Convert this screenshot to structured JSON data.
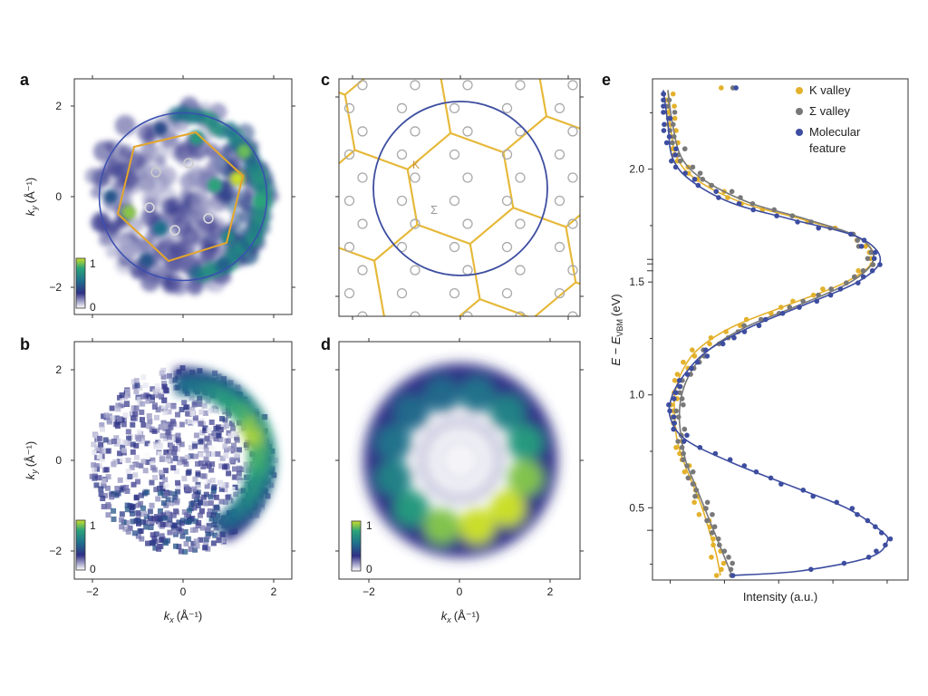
{
  "panels": {
    "a": {
      "letter": "a",
      "ylabel_main": "k",
      "ylabel_sub": "y",
      "ylabel_unit": "(Å⁻¹)",
      "xlabel_main": "",
      "xlabel_sub": "",
      "xlabel_unit": "",
      "xticks": [],
      "yticks": [
        "2",
        "0",
        "−2"
      ],
      "colorbar": {
        "max": "1",
        "min": "0"
      }
    },
    "b": {
      "letter": "b",
      "ylabel_main": "k",
      "ylabel_sub": "y",
      "ylabel_unit": "(Å⁻¹)",
      "xlabel_main": "k",
      "xlabel_sub": "x",
      "xlabel_unit": "(Å⁻¹)",
      "xticks": [
        "−2",
        "0",
        "2"
      ],
      "yticks": [
        "2",
        "0",
        "−2"
      ],
      "colorbar": {
        "max": "1",
        "min": "0"
      }
    },
    "c": {
      "letter": "c",
      "point_labels": {
        "K": "K",
        "sigma": "Σ"
      }
    },
    "d": {
      "letter": "d",
      "xlabel_main": "k",
      "xlabel_sub": "x",
      "xlabel_unit": "(Å⁻¹)",
      "xticks": [
        "−2",
        "0",
        "2"
      ],
      "colorbar": {
        "max": "1",
        "min": "0"
      }
    },
    "e": {
      "letter": "e"
    }
  },
  "chart_data": [
    {
      "panel": "a",
      "type": "heatmap",
      "x_range": [
        -2.2,
        2.2
      ],
      "y_range": [
        -2.2,
        2.2
      ],
      "colormap": [
        "#ffffff",
        "#2f2f86",
        "#1f6f8c",
        "#2aa37a",
        "#c9de2a"
      ],
      "colorbar_range": [
        0,
        1
      ],
      "overlay_circle_radius": 1.85,
      "hot_spots": [
        {
          "x": 1.2,
          "y": 0.4,
          "v": 1.0
        },
        {
          "x": 1.35,
          "y": 1.0,
          "v": 0.85
        },
        {
          "x": 1.7,
          "y": -0.1,
          "v": 0.75
        },
        {
          "x": -1.2,
          "y": -0.35,
          "v": 0.9
        },
        {
          "x": 0.7,
          "y": 0.25,
          "v": 0.75
        },
        {
          "x": 0.3,
          "y": 1.3,
          "v": 0.7
        },
        {
          "x": 1.0,
          "y": -0.9,
          "v": 0.6
        },
        {
          "x": -0.5,
          "y": -0.7,
          "v": 0.5
        },
        {
          "x": -1.6,
          "y": 0.0,
          "v": 0.4
        },
        {
          "x": -0.8,
          "y": -1.4,
          "v": 0.4
        },
        {
          "x": 0.9,
          "y": -1.5,
          "v": 0.45
        },
        {
          "x": -0.5,
          "y": 1.5,
          "v": 0.35
        }
      ]
    },
    {
      "panel": "b",
      "type": "heatmap",
      "x_range": [
        -2.2,
        2.2
      ],
      "y_range": [
        -2.2,
        2.2
      ],
      "colorbar_range": [
        0,
        1
      ],
      "arc": {
        "radius": 1.75,
        "start_deg": -60,
        "end_deg": 95,
        "peak": 1.0
      }
    },
    {
      "panel": "c",
      "type": "diagram",
      "description_points": [
        "K",
        "Σ"
      ]
    },
    {
      "panel": "d",
      "type": "heatmap",
      "x_range": [
        -2.2,
        2.2
      ],
      "y_range": [
        -2.2,
        2.2
      ],
      "colorbar_range": [
        0,
        1
      ],
      "ring_lobes": 12,
      "ring_radius": 1.5,
      "lobe_values": [
        0.35,
        0.45,
        0.6,
        0.85,
        1.0,
        1.0,
        0.85,
        0.6,
        0.45,
        0.35,
        0.3,
        0.3
      ]
    },
    {
      "panel": "e",
      "type": "line",
      "xlabel": "Intensity (a.u.)",
      "ylabel": "E − E",
      "ylabel_sub": "VBM",
      "ylabel_unit": "(eV)",
      "ylim": [
        0.18,
        2.4
      ],
      "yticks": [
        0.5,
        1.0,
        1.5,
        2.0
      ],
      "ytick_labels": [
        "0.5",
        "1.0",
        "1.5",
        "2.0"
      ],
      "legend_position": "top-right",
      "series": [
        {
          "name": "K valley",
          "color": "#e3b12b",
          "points": [
            [
              0.02,
              2.35
            ],
            [
              0.03,
              2.2
            ],
            [
              0.06,
              2.05
            ],
            [
              0.15,
              1.95
            ],
            [
              0.35,
              1.85
            ],
            [
              0.6,
              1.78
            ],
            [
              0.85,
              1.7
            ],
            [
              0.92,
              1.6
            ],
            [
              0.8,
              1.5
            ],
            [
              0.55,
              1.4
            ],
            [
              0.3,
              1.3
            ],
            [
              0.15,
              1.2
            ],
            [
              0.08,
              1.1
            ],
            [
              0.05,
              1.0
            ],
            [
              0.05,
              0.9
            ],
            [
              0.06,
              0.8
            ],
            [
              0.09,
              0.7
            ],
            [
              0.13,
              0.6
            ],
            [
              0.17,
              0.5
            ],
            [
              0.2,
              0.4
            ],
            [
              0.23,
              0.3
            ],
            [
              0.25,
              0.2
            ]
          ]
        },
        {
          "name": "Σ valley",
          "color": "#787878",
          "points": [
            [
              0.02,
              2.35
            ],
            [
              0.04,
              2.2
            ],
            [
              0.08,
              2.05
            ],
            [
              0.18,
              1.95
            ],
            [
              0.38,
              1.85
            ],
            [
              0.62,
              1.78
            ],
            [
              0.85,
              1.7
            ],
            [
              0.92,
              1.6
            ],
            [
              0.82,
              1.5
            ],
            [
              0.6,
              1.4
            ],
            [
              0.36,
              1.3
            ],
            [
              0.2,
              1.2
            ],
            [
              0.12,
              1.1
            ],
            [
              0.08,
              1.0
            ],
            [
              0.07,
              0.9
            ],
            [
              0.08,
              0.8
            ],
            [
              0.1,
              0.7
            ],
            [
              0.14,
              0.6
            ],
            [
              0.18,
              0.5
            ],
            [
              0.22,
              0.4
            ],
            [
              0.26,
              0.3
            ],
            [
              0.3,
              0.2
            ]
          ]
        },
        {
          "name": "Molecular feature",
          "color": "#3d4da0",
          "points": [
            [
              0.0,
              2.35
            ],
            [
              0.02,
              2.2
            ],
            [
              0.04,
              2.05
            ],
            [
              0.12,
              1.95
            ],
            [
              0.3,
              1.85
            ],
            [
              0.55,
              1.78
            ],
            [
              0.85,
              1.7
            ],
            [
              0.95,
              1.6
            ],
            [
              0.85,
              1.5
            ],
            [
              0.62,
              1.4
            ],
            [
              0.38,
              1.3
            ],
            [
              0.2,
              1.2
            ],
            [
              0.1,
              1.1
            ],
            [
              0.04,
              1.0
            ],
            [
              0.03,
              0.9
            ],
            [
              0.1,
              0.8
            ],
            [
              0.3,
              0.7
            ],
            [
              0.55,
              0.6
            ],
            [
              0.8,
              0.5
            ],
            [
              0.95,
              0.4
            ],
            [
              0.98,
              0.35
            ],
            [
              0.9,
              0.28
            ],
            [
              0.6,
              0.22
            ],
            [
              0.3,
              0.2
            ]
          ]
        }
      ]
    }
  ]
}
